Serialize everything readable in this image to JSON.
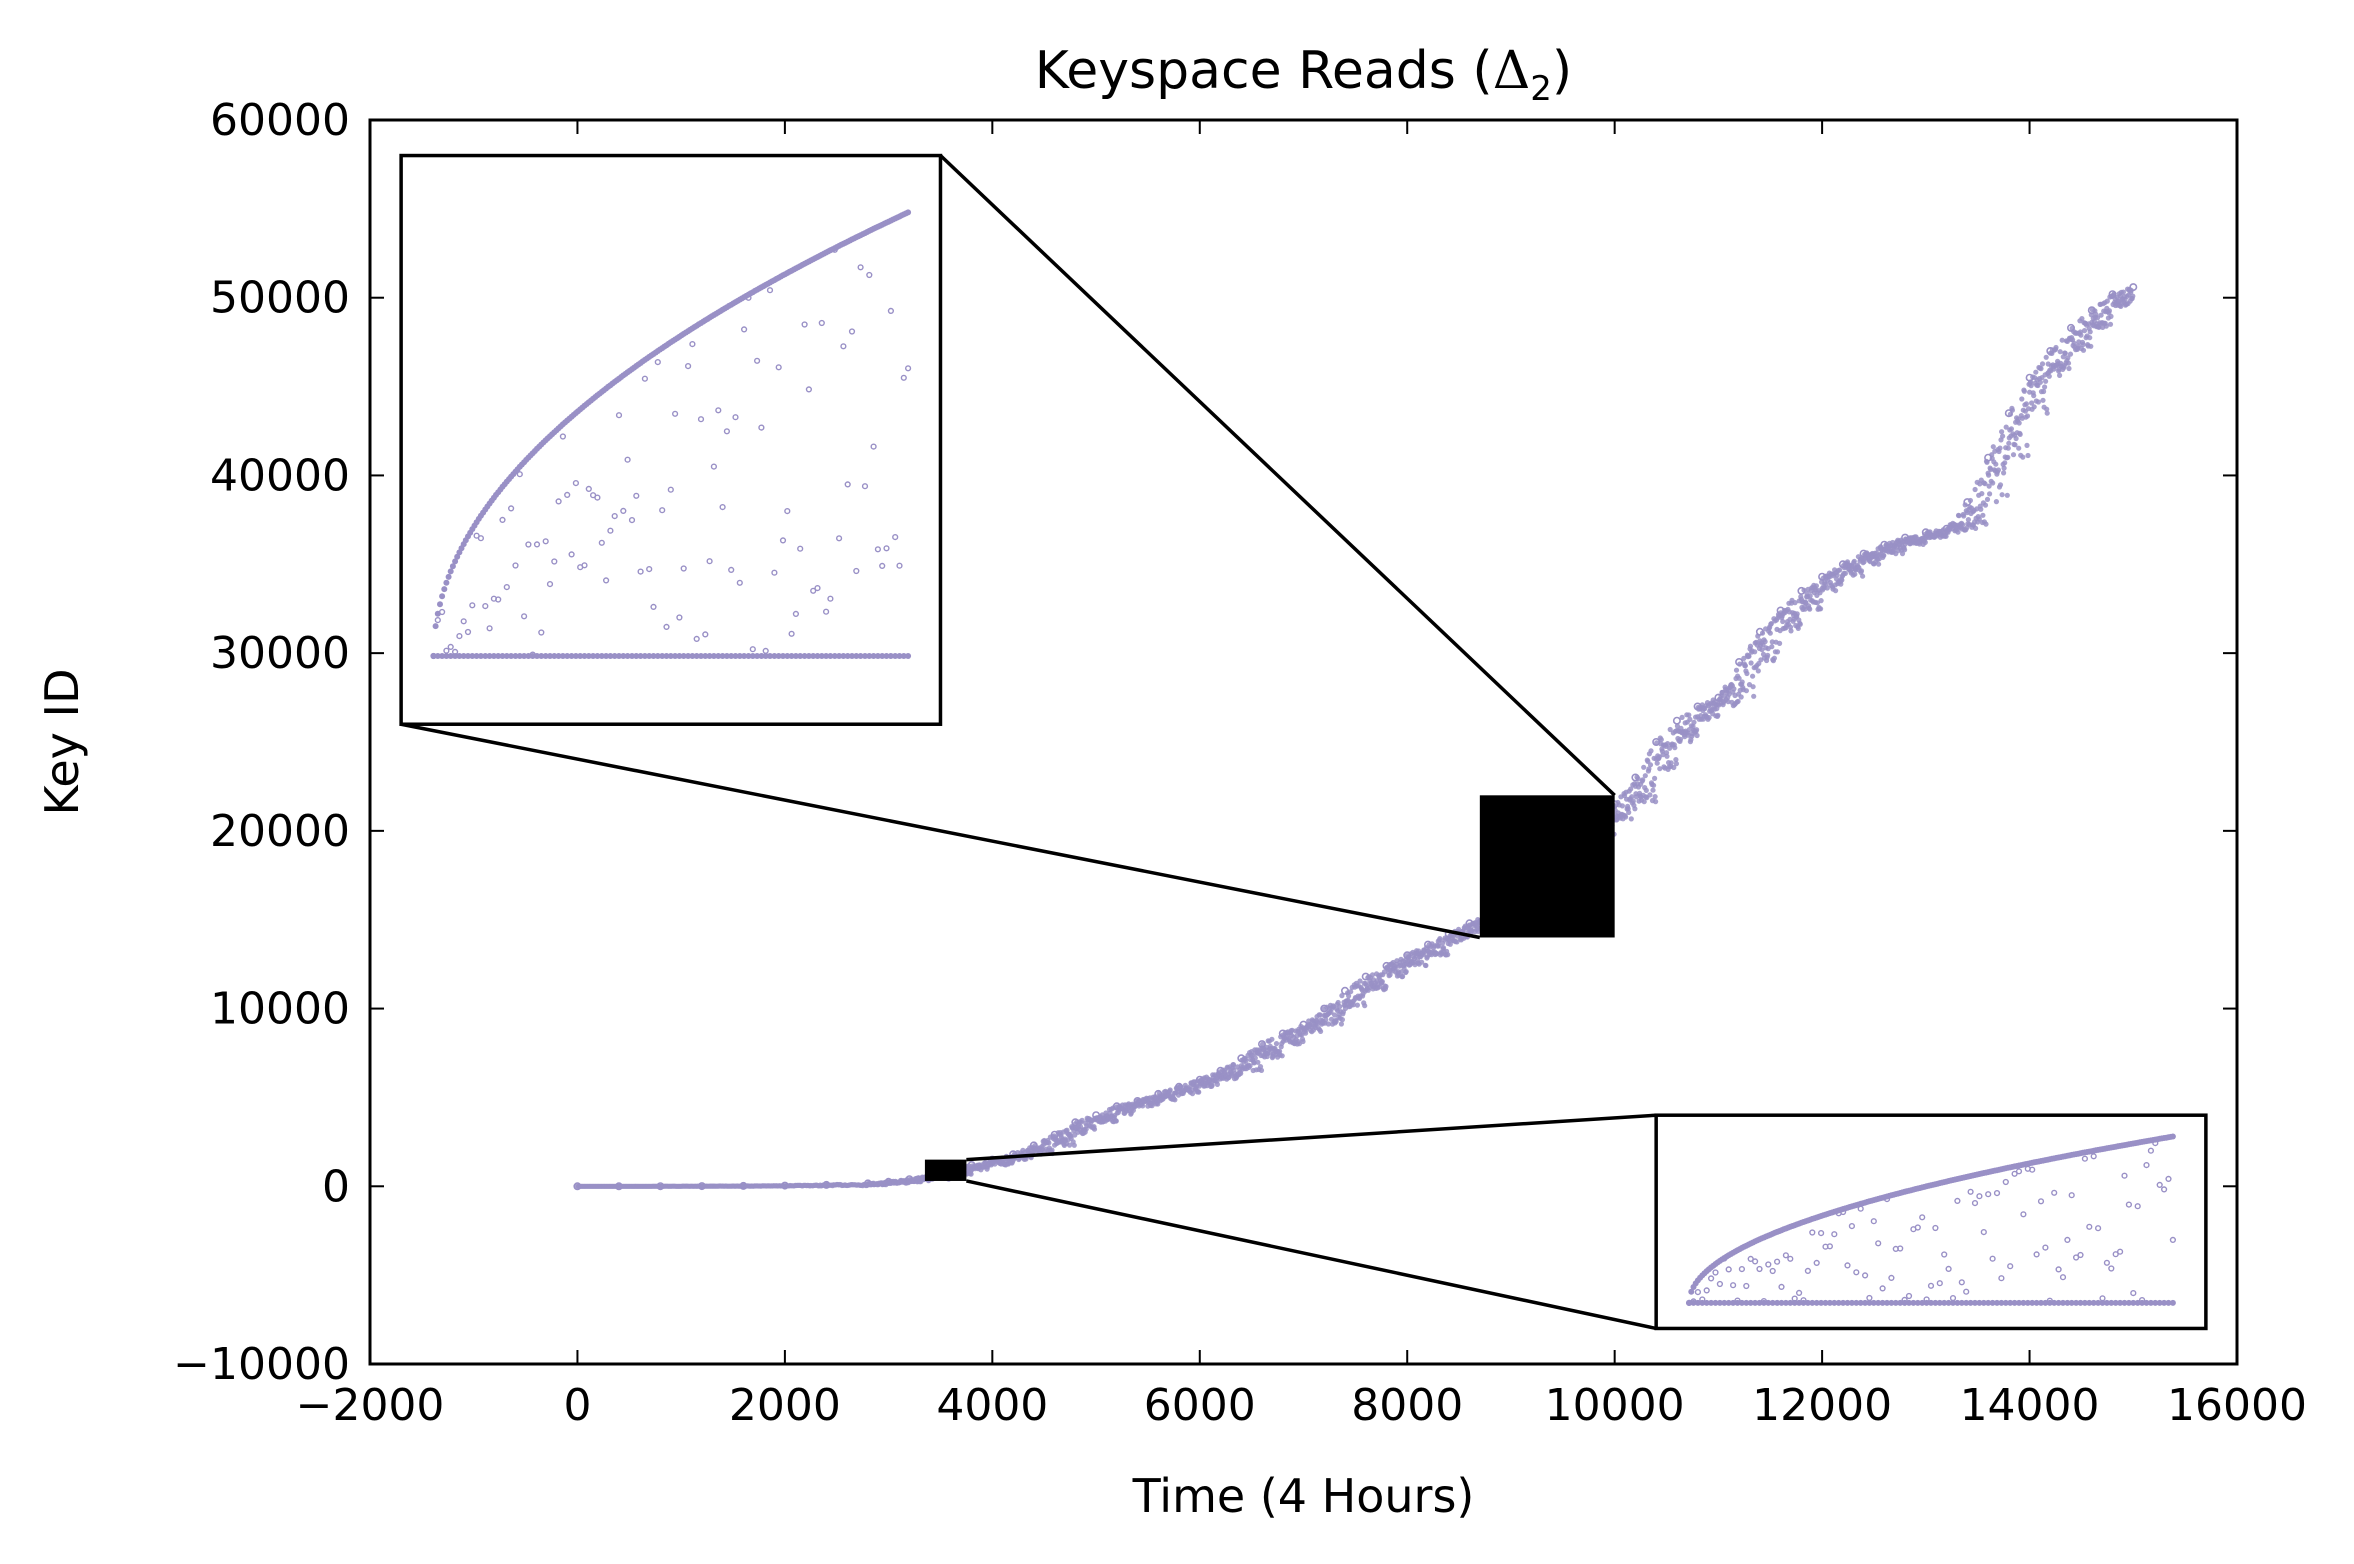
{
  "chart_data": {
    "type": "scatter",
    "title": "Keyspace Reads (",
    "title_symbol": "Δ",
    "title_subscript": "2",
    "title_close": ")",
    "xlabel": "Time (4 Hours)",
    "ylabel": "Key ID",
    "xlim": [
      -2000,
      16000
    ],
    "ylim": [
      -10000,
      60000
    ],
    "xticks": [
      -2000,
      0,
      2000,
      4000,
      6000,
      8000,
      10000,
      12000,
      14000,
      16000
    ],
    "yticks": [
      -10000,
      0,
      10000,
      20000,
      30000,
      40000,
      50000,
      60000
    ],
    "xtick_labels": [
      "−2000",
      "0",
      "2000",
      "4000",
      "6000",
      "8000",
      "10000",
      "12000",
      "14000",
      "16000"
    ],
    "ytick_labels": [
      "−10000",
      "0",
      "10000",
      "20000",
      "30000",
      "40000",
      "50000",
      "60000"
    ],
    "grid": false,
    "point_color": "#9990c6",
    "series": [
      {
        "points": [
          [
            0,
            0
          ],
          [
            400,
            0
          ],
          [
            800,
            5
          ],
          [
            1200,
            10
          ],
          [
            1600,
            20
          ],
          [
            2000,
            40
          ],
          [
            2400,
            80
          ],
          [
            2800,
            160
          ],
          [
            3000,
            250
          ],
          [
            3200,
            400
          ],
          [
            3400,
            600
          ],
          [
            3600,
            900
          ],
          [
            3800,
            1200
          ],
          [
            4000,
            1500
          ],
          [
            4200,
            1800
          ],
          [
            4400,
            2300
          ],
          [
            4600,
            2900
          ],
          [
            4800,
            3600
          ],
          [
            5000,
            4000
          ],
          [
            5200,
            4500
          ],
          [
            5400,
            4800
          ],
          [
            5600,
            5200
          ],
          [
            5800,
            5600
          ],
          [
            6000,
            6000
          ],
          [
            6200,
            6500
          ],
          [
            6400,
            7200
          ],
          [
            6600,
            8000
          ],
          [
            6800,
            8600
          ],
          [
            7000,
            9100
          ],
          [
            7200,
            10000
          ],
          [
            7400,
            11000
          ],
          [
            7600,
            11800
          ],
          [
            7800,
            12400
          ],
          [
            8000,
            13000
          ],
          [
            8200,
            13600
          ],
          [
            8400,
            14200
          ],
          [
            8600,
            14800
          ],
          [
            8800,
            15500
          ],
          [
            9000,
            16500
          ],
          [
            9200,
            17500
          ],
          [
            9400,
            18500
          ],
          [
            9600,
            19600
          ],
          [
            9800,
            20600
          ],
          [
            10000,
            21500
          ],
          [
            10200,
            23000
          ],
          [
            10400,
            25000
          ],
          [
            10600,
            26200
          ],
          [
            10800,
            27000
          ],
          [
            11000,
            27500
          ],
          [
            11200,
            29500
          ],
          [
            11400,
            31200
          ],
          [
            11600,
            32400
          ],
          [
            11800,
            33500
          ],
          [
            12000,
            34300
          ],
          [
            12200,
            35000
          ],
          [
            12400,
            35600
          ],
          [
            12600,
            36100
          ],
          [
            12800,
            36500
          ],
          [
            13000,
            36800
          ],
          [
            13200,
            37000
          ],
          [
            13400,
            38500
          ],
          [
            13600,
            41000
          ],
          [
            13800,
            43500
          ],
          [
            14000,
            45500
          ],
          [
            14200,
            47000
          ],
          [
            14400,
            48300
          ],
          [
            14600,
            49300
          ],
          [
            14800,
            50200
          ],
          [
            15000,
            50600
          ]
        ]
      }
    ],
    "zoom_regions": [
      {
        "source_x": [
          8700,
          10000
        ],
        "source_y": [
          14000,
          22000
        ],
        "inset_x": [
          -1700,
          3500
        ],
        "inset_y": [
          26000,
          58000
        ],
        "placement": "upper-left"
      },
      {
        "source_x": [
          3350,
          3750
        ],
        "source_y": [
          300,
          1500
        ],
        "inset_x": [
          10400,
          15700
        ],
        "inset_y": [
          -8000,
          4000
        ],
        "placement": "lower-right"
      }
    ]
  }
}
